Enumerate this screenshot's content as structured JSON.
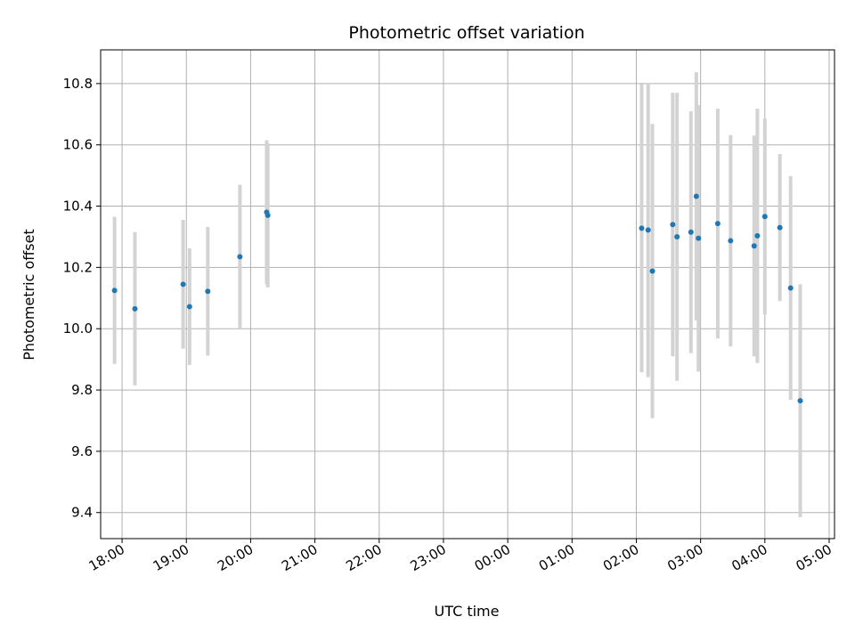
{
  "chart_data": {
    "type": "scatter",
    "title": "Photometric offset variation",
    "xlabel": "UTC time",
    "ylabel": "Photometric offset",
    "xlim": [
      "17:40",
      "05:05"
    ],
    "ylim": [
      9.315,
      10.91
    ],
    "grid": true,
    "x_ticks": [
      "18:00",
      "19:00",
      "20:00",
      "21:00",
      "22:00",
      "23:00",
      "00:00",
      "01:00",
      "02:00",
      "03:00",
      "04:00",
      "05:00"
    ],
    "y_ticks": [
      "9.4",
      "9.6",
      "9.8",
      "10.0",
      "10.2",
      "10.4",
      "10.6",
      "10.8"
    ],
    "colors": {
      "marker": "#1f77b4",
      "errorbar": "#d3d3d3",
      "grid": "#b0b0b0"
    },
    "series": [
      {
        "points": [
          {
            "time": "17:53",
            "y": 10.125,
            "yerr": 0.24
          },
          {
            "time": "18:12",
            "y": 10.065,
            "yerr": 0.25
          },
          {
            "time": "18:57",
            "y": 10.145,
            "yerr": 0.21
          },
          {
            "time": "19:03",
            "y": 10.072,
            "yerr": 0.19
          },
          {
            "time": "19:20",
            "y": 10.122,
            "yerr": 0.21
          },
          {
            "time": "19:50",
            "y": 10.235,
            "yerr": 0.235
          },
          {
            "time": "20:15",
            "y": 10.38,
            "yerr": 0.235
          },
          {
            "time": "20:16",
            "y": 10.37,
            "yerr": 0.235
          },
          {
            "time": "02:05",
            "y": 10.328,
            "yerr": 0.47
          },
          {
            "time": "02:11",
            "y": 10.322,
            "yerr": 0.48
          },
          {
            "time": "02:15",
            "y": 10.188,
            "yerr": 0.48
          },
          {
            "time": "02:34",
            "y": 10.34,
            "yerr": 0.43
          },
          {
            "time": "02:38",
            "y": 10.3,
            "yerr": 0.47
          },
          {
            "time": "02:51",
            "y": 10.315,
            "yerr": 0.395
          },
          {
            "time": "02:56",
            "y": 10.432,
            "yerr": 0.405
          },
          {
            "time": "02:58",
            "y": 10.295,
            "yerr": 0.435
          },
          {
            "time": "03:16",
            "y": 10.343,
            "yerr": 0.375
          },
          {
            "time": "03:28",
            "y": 10.287,
            "yerr": 0.345
          },
          {
            "time": "03:50",
            "y": 10.27,
            "yerr": 0.36
          },
          {
            "time": "03:53",
            "y": 10.303,
            "yerr": 0.415
          },
          {
            "time": "04:00",
            "y": 10.366,
            "yerr": 0.32
          },
          {
            "time": "04:14",
            "y": 10.33,
            "yerr": 0.24
          },
          {
            "time": "04:24",
            "y": 10.133,
            "yerr": 0.365
          },
          {
            "time": "04:33",
            "y": 9.765,
            "yerr": 0.38
          }
        ]
      }
    ]
  }
}
